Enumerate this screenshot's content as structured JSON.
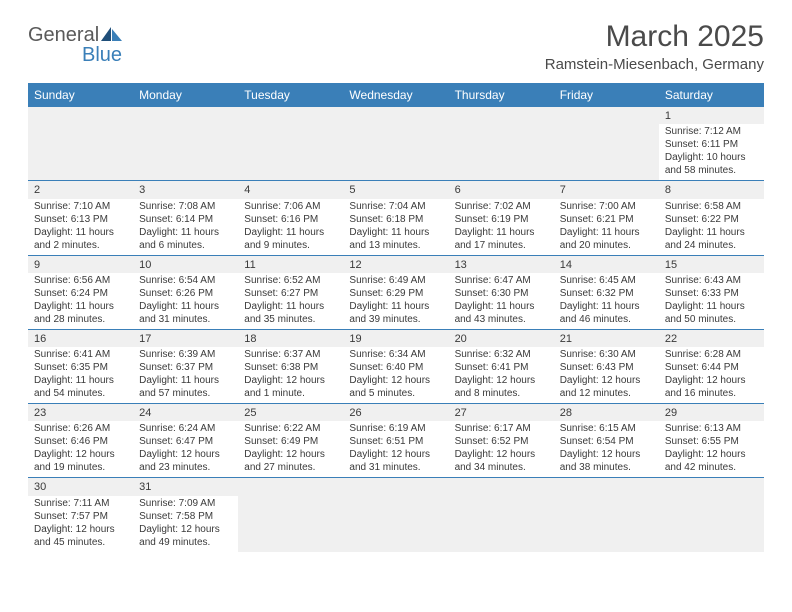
{
  "logo": {
    "textA": "General",
    "textB": "Blue"
  },
  "header": {
    "title": "March 2025",
    "location": "Ramstein-Miesenbach, Germany"
  },
  "colors": {
    "header_bg": "#3a7fb8",
    "header_text": "#ffffff",
    "cell_shade": "#f0f0f0",
    "row_border": "#3a7fb8",
    "body_text": "#3a3a3a",
    "title_text": "#4a4a4a",
    "logo_gray": "#5a5a5a",
    "logo_blue": "#3a7fb8"
  },
  "fonts": {
    "title_size": 30,
    "location_size": 15,
    "dayheader_size": 12,
    "daynum_size": 11,
    "body_size": 10
  },
  "daynames": [
    "Sunday",
    "Monday",
    "Tuesday",
    "Wednesday",
    "Thursday",
    "Friday",
    "Saturday"
  ],
  "weeks": [
    [
      null,
      null,
      null,
      null,
      null,
      null,
      {
        "d": "1",
        "sr": "Sunrise: 7:12 AM",
        "ss": "Sunset: 6:11 PM",
        "dl": "Daylight: 10 hours and 58 minutes."
      }
    ],
    [
      {
        "d": "2",
        "sr": "Sunrise: 7:10 AM",
        "ss": "Sunset: 6:13 PM",
        "dl": "Daylight: 11 hours and 2 minutes."
      },
      {
        "d": "3",
        "sr": "Sunrise: 7:08 AM",
        "ss": "Sunset: 6:14 PM",
        "dl": "Daylight: 11 hours and 6 minutes."
      },
      {
        "d": "4",
        "sr": "Sunrise: 7:06 AM",
        "ss": "Sunset: 6:16 PM",
        "dl": "Daylight: 11 hours and 9 minutes."
      },
      {
        "d": "5",
        "sr": "Sunrise: 7:04 AM",
        "ss": "Sunset: 6:18 PM",
        "dl": "Daylight: 11 hours and 13 minutes."
      },
      {
        "d": "6",
        "sr": "Sunrise: 7:02 AM",
        "ss": "Sunset: 6:19 PM",
        "dl": "Daylight: 11 hours and 17 minutes."
      },
      {
        "d": "7",
        "sr": "Sunrise: 7:00 AM",
        "ss": "Sunset: 6:21 PM",
        "dl": "Daylight: 11 hours and 20 minutes."
      },
      {
        "d": "8",
        "sr": "Sunrise: 6:58 AM",
        "ss": "Sunset: 6:22 PM",
        "dl": "Daylight: 11 hours and 24 minutes."
      }
    ],
    [
      {
        "d": "9",
        "sr": "Sunrise: 6:56 AM",
        "ss": "Sunset: 6:24 PM",
        "dl": "Daylight: 11 hours and 28 minutes."
      },
      {
        "d": "10",
        "sr": "Sunrise: 6:54 AM",
        "ss": "Sunset: 6:26 PM",
        "dl": "Daylight: 11 hours and 31 minutes."
      },
      {
        "d": "11",
        "sr": "Sunrise: 6:52 AM",
        "ss": "Sunset: 6:27 PM",
        "dl": "Daylight: 11 hours and 35 minutes."
      },
      {
        "d": "12",
        "sr": "Sunrise: 6:49 AM",
        "ss": "Sunset: 6:29 PM",
        "dl": "Daylight: 11 hours and 39 minutes."
      },
      {
        "d": "13",
        "sr": "Sunrise: 6:47 AM",
        "ss": "Sunset: 6:30 PM",
        "dl": "Daylight: 11 hours and 43 minutes."
      },
      {
        "d": "14",
        "sr": "Sunrise: 6:45 AM",
        "ss": "Sunset: 6:32 PM",
        "dl": "Daylight: 11 hours and 46 minutes."
      },
      {
        "d": "15",
        "sr": "Sunrise: 6:43 AM",
        "ss": "Sunset: 6:33 PM",
        "dl": "Daylight: 11 hours and 50 minutes."
      }
    ],
    [
      {
        "d": "16",
        "sr": "Sunrise: 6:41 AM",
        "ss": "Sunset: 6:35 PM",
        "dl": "Daylight: 11 hours and 54 minutes."
      },
      {
        "d": "17",
        "sr": "Sunrise: 6:39 AM",
        "ss": "Sunset: 6:37 PM",
        "dl": "Daylight: 11 hours and 57 minutes."
      },
      {
        "d": "18",
        "sr": "Sunrise: 6:37 AM",
        "ss": "Sunset: 6:38 PM",
        "dl": "Daylight: 12 hours and 1 minute."
      },
      {
        "d": "19",
        "sr": "Sunrise: 6:34 AM",
        "ss": "Sunset: 6:40 PM",
        "dl": "Daylight: 12 hours and 5 minutes."
      },
      {
        "d": "20",
        "sr": "Sunrise: 6:32 AM",
        "ss": "Sunset: 6:41 PM",
        "dl": "Daylight: 12 hours and 8 minutes."
      },
      {
        "d": "21",
        "sr": "Sunrise: 6:30 AM",
        "ss": "Sunset: 6:43 PM",
        "dl": "Daylight: 12 hours and 12 minutes."
      },
      {
        "d": "22",
        "sr": "Sunrise: 6:28 AM",
        "ss": "Sunset: 6:44 PM",
        "dl": "Daylight: 12 hours and 16 minutes."
      }
    ],
    [
      {
        "d": "23",
        "sr": "Sunrise: 6:26 AM",
        "ss": "Sunset: 6:46 PM",
        "dl": "Daylight: 12 hours and 19 minutes."
      },
      {
        "d": "24",
        "sr": "Sunrise: 6:24 AM",
        "ss": "Sunset: 6:47 PM",
        "dl": "Daylight: 12 hours and 23 minutes."
      },
      {
        "d": "25",
        "sr": "Sunrise: 6:22 AM",
        "ss": "Sunset: 6:49 PM",
        "dl": "Daylight: 12 hours and 27 minutes."
      },
      {
        "d": "26",
        "sr": "Sunrise: 6:19 AM",
        "ss": "Sunset: 6:51 PM",
        "dl": "Daylight: 12 hours and 31 minutes."
      },
      {
        "d": "27",
        "sr": "Sunrise: 6:17 AM",
        "ss": "Sunset: 6:52 PM",
        "dl": "Daylight: 12 hours and 34 minutes."
      },
      {
        "d": "28",
        "sr": "Sunrise: 6:15 AM",
        "ss": "Sunset: 6:54 PM",
        "dl": "Daylight: 12 hours and 38 minutes."
      },
      {
        "d": "29",
        "sr": "Sunrise: 6:13 AM",
        "ss": "Sunset: 6:55 PM",
        "dl": "Daylight: 12 hours and 42 minutes."
      }
    ],
    [
      {
        "d": "30",
        "sr": "Sunrise: 7:11 AM",
        "ss": "Sunset: 7:57 PM",
        "dl": "Daylight: 12 hours and 45 minutes."
      },
      {
        "d": "31",
        "sr": "Sunrise: 7:09 AM",
        "ss": "Sunset: 7:58 PM",
        "dl": "Daylight: 12 hours and 49 minutes."
      },
      null,
      null,
      null,
      null,
      null
    ]
  ]
}
